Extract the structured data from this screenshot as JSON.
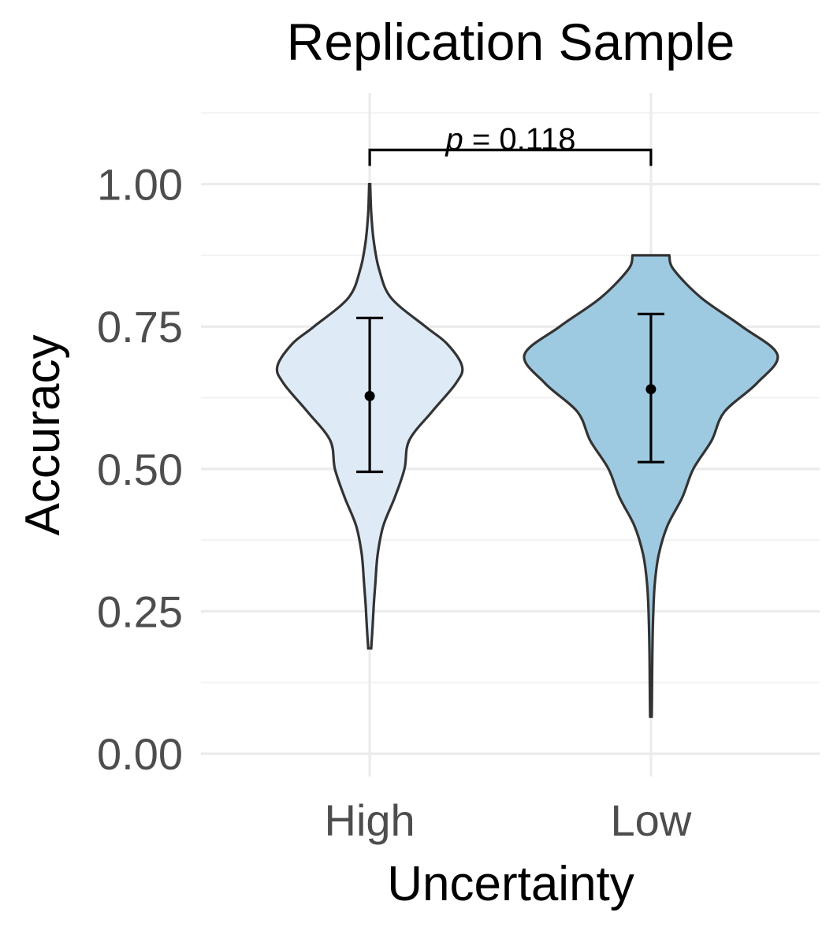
{
  "chart_data": {
    "type": "violin",
    "title": "Replication Sample",
    "xlabel": "Uncertainty",
    "ylabel": "Accuracy",
    "ylim": [
      -0.04,
      1.16
    ],
    "y_ticks": [
      "0.00",
      "0.25",
      "0.50",
      "0.75",
      "1.00"
    ],
    "y_tick_values": [
      0,
      0.25,
      0.5,
      0.75,
      1.0
    ],
    "y_minor_values": [
      0.125,
      0.375,
      0.625,
      0.875,
      1.125
    ],
    "grid": true,
    "categories": [
      "High",
      "Low"
    ],
    "violins": [
      {
        "category": "High",
        "color": "#deebf7",
        "min": 0.185,
        "max": 1.0,
        "mean": 0.628,
        "ci_low": 0.495,
        "ci_high": 0.765,
        "profile": [
          [
            0.185,
            0.012
          ],
          [
            0.22,
            0.022
          ],
          [
            0.26,
            0.032
          ],
          [
            0.3,
            0.045
          ],
          [
            0.35,
            0.063
          ],
          [
            0.4,
            0.107
          ],
          [
            0.45,
            0.198
          ],
          [
            0.5,
            0.275
          ],
          [
            0.55,
            0.312
          ],
          [
            0.6,
            0.49
          ],
          [
            0.65,
            0.68
          ],
          [
            0.68,
            0.73
          ],
          [
            0.72,
            0.61
          ],
          [
            0.75,
            0.44
          ],
          [
            0.8,
            0.17
          ],
          [
            0.85,
            0.075
          ],
          [
            0.9,
            0.032
          ],
          [
            0.95,
            0.012
          ],
          [
            1.0,
            0.004
          ]
        ]
      },
      {
        "category": "Low",
        "color": "#9ecae1",
        "min": 0.065,
        "max": 0.875,
        "mean": 0.64,
        "ci_low": 0.512,
        "ci_high": 0.772,
        "profile": [
          [
            0.065,
            0.006
          ],
          [
            0.1,
            0.008
          ],
          [
            0.15,
            0.01
          ],
          [
            0.2,
            0.013
          ],
          [
            0.25,
            0.019
          ],
          [
            0.3,
            0.031
          ],
          [
            0.35,
            0.062
          ],
          [
            0.4,
            0.13
          ],
          [
            0.45,
            0.248
          ],
          [
            0.5,
            0.335
          ],
          [
            0.55,
            0.48
          ],
          [
            0.6,
            0.58
          ],
          [
            0.65,
            0.835
          ],
          [
            0.7,
            1.0
          ],
          [
            0.75,
            0.72
          ],
          [
            0.8,
            0.4
          ],
          [
            0.85,
            0.18
          ],
          [
            0.875,
            0.145
          ]
        ]
      }
    ],
    "comparison": {
      "label_prefix": "p",
      "label_suffix": " = 0.118",
      "from": "High",
      "to": "Low",
      "y": 1.06
    }
  }
}
